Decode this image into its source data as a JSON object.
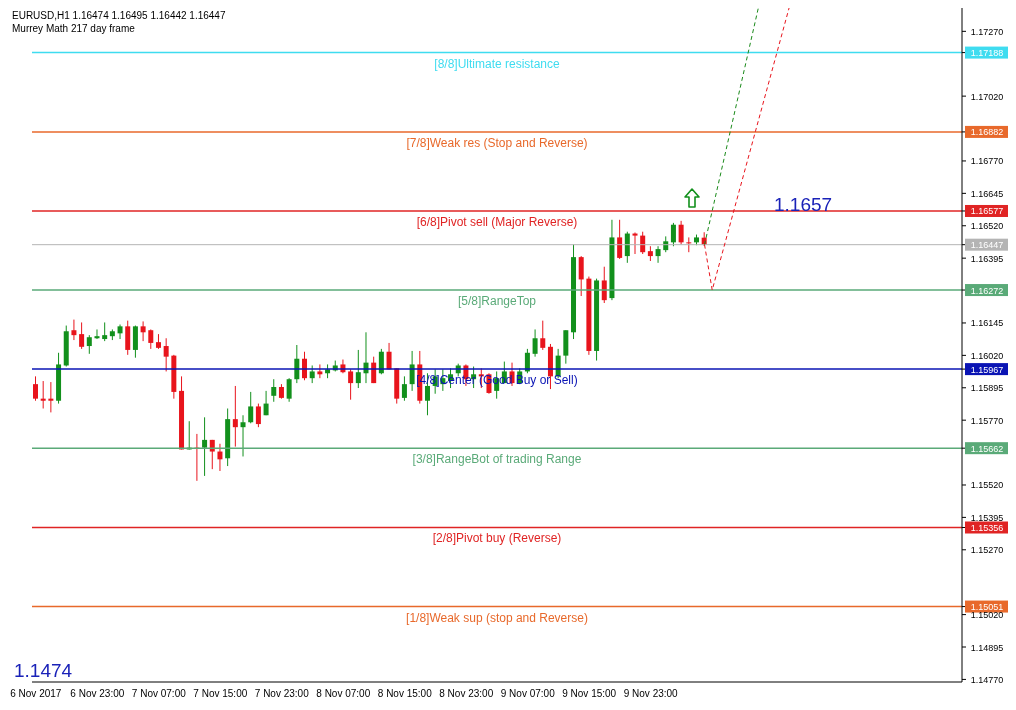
{
  "chart_data": {
    "type": "candlestick",
    "title": "EURUSD,H1 1.16474 1.16495 1.16442 1.16447",
    "subtitle": "Murrey Math 217 day frame",
    "categories": [
      "6 Nov 2017",
      null,
      null,
      null,
      null,
      null,
      null,
      null,
      "6 Nov 23:00",
      null,
      null,
      null,
      null,
      null,
      null,
      null,
      "7 Nov 07:00",
      null,
      null,
      null,
      null,
      null,
      null,
      null,
      "7 Nov 15:00",
      null,
      null,
      null,
      null,
      null,
      null,
      null,
      "7 Nov 23:00",
      null,
      null,
      null,
      null,
      null,
      null,
      null,
      "8 Nov 07:00",
      null,
      null,
      null,
      null,
      null,
      null,
      null,
      "8 Nov 15:00",
      null,
      null,
      null,
      null,
      null,
      null,
      null,
      "8 Nov 23:00",
      null,
      null,
      null,
      null,
      null,
      null,
      null,
      "9 Nov 07:00",
      null,
      null,
      null,
      null,
      null,
      null,
      null,
      "9 Nov 15:00",
      null,
      null,
      null,
      null,
      null,
      null,
      null,
      "9 Nov 23:00",
      null,
      null,
      null,
      null,
      null,
      null,
      null,
      null,
      null,
      null,
      null,
      null,
      null,
      null,
      null,
      null,
      null,
      null,
      null,
      null,
      null,
      null,
      null,
      null,
      null,
      null,
      null,
      null,
      null,
      null,
      null,
      null,
      null,
      null,
      null,
      null,
      null,
      null,
      null,
      null
    ],
    "ohlc": [
      [
        1.15909,
        1.15939,
        1.15845,
        1.15853
      ],
      [
        1.15853,
        1.15921,
        1.15815,
        1.15845
      ],
      [
        1.15853,
        1.15917,
        1.158,
        1.15845
      ],
      [
        1.15845,
        1.1603,
        1.15834,
        1.15985
      ],
      [
        1.15981,
        1.16135,
        1.15977,
        1.16113
      ],
      [
        1.16117,
        1.16158,
        1.16079,
        1.16098
      ],
      [
        1.16102,
        1.16147,
        1.16045,
        1.16053
      ],
      [
        1.16056,
        1.16098,
        1.16026,
        1.1609
      ],
      [
        1.16086,
        1.1612,
        1.16083,
        1.16094
      ],
      [
        1.16083,
        1.16147,
        1.16075,
        1.16098
      ],
      [
        1.16094,
        1.1612,
        1.16079,
        1.16113
      ],
      [
        1.16105,
        1.16139,
        1.16083,
        1.16132
      ],
      [
        1.16132,
        1.16154,
        1.16022,
        1.16041
      ],
      [
        1.16041,
        1.16135,
        1.16011,
        1.16132
      ],
      [
        1.16132,
        1.16151,
        1.16075,
        1.16109
      ],
      [
        1.16117,
        1.1612,
        1.16045,
        1.16068
      ],
      [
        1.16071,
        1.16102,
        1.16045,
        1.16049
      ],
      [
        1.16056,
        1.16086,
        1.15958,
        1.16015
      ],
      [
        1.16019,
        1.16022,
        1.15853,
        1.15879
      ],
      [
        1.15883,
        1.15939,
        1.15657,
        1.15657
      ],
      [
        1.15657,
        1.15766,
        1.15657,
        1.15664
      ],
      [
        1.15664,
        1.15717,
        1.15536,
        1.1566
      ],
      [
        1.15664,
        1.15781,
        1.15555,
        1.15694
      ],
      [
        1.15694,
        1.15694,
        1.15581,
        1.15649
      ],
      [
        1.15649,
        1.15679,
        1.15574,
        1.15619
      ],
      [
        1.15623,
        1.15815,
        1.15593,
        1.15774
      ],
      [
        1.15774,
        1.15902,
        1.15668,
        1.15743
      ],
      [
        1.15743,
        1.15789,
        1.1563,
        1.15762
      ],
      [
        1.15762,
        1.15879,
        1.15758,
        1.15823
      ],
      [
        1.15823,
        1.15834,
        1.15743,
        1.15755
      ],
      [
        1.15789,
        1.15883,
        1.15789,
        1.15834
      ],
      [
        1.15864,
        1.15928,
        1.15841,
        1.15898
      ],
      [
        1.15898,
        1.15909,
        1.15853,
        1.15856
      ],
      [
        1.15853,
        1.15932,
        1.15841,
        1.15928
      ],
      [
        1.15928,
        1.1606,
        1.15913,
        1.16007
      ],
      [
        1.16007,
        1.16034,
        1.15924,
        1.15932
      ],
      [
        1.15932,
        1.15981,
        1.15913,
        1.15958
      ],
      [
        1.15958,
        1.15985,
        1.15932,
        1.15947
      ],
      [
        1.15951,
        1.15985,
        1.15932,
        1.15966
      ],
      [
        1.15962,
        1.16,
        1.15958,
        1.15981
      ],
      [
        1.15985,
        1.16004,
        1.15951,
        1.15955
      ],
      [
        1.15958,
        1.15966,
        1.15849,
        1.15913
      ],
      [
        1.15913,
        1.16041,
        1.15894,
        1.15955
      ],
      [
        1.15951,
        1.16109,
        1.15913,
        1.15992
      ],
      [
        1.15992,
        1.16015,
        1.15913,
        1.15913
      ],
      [
        1.15951,
        1.16045,
        1.15947,
        1.16034
      ],
      [
        1.16034,
        1.16068,
        1.15966,
        1.15966
      ],
      [
        1.1597,
        1.1597,
        1.15834,
        1.15853
      ],
      [
        1.15856,
        1.15939,
        1.15845,
        1.15909
      ],
      [
        1.15909,
        1.16037,
        1.15883,
        1.15985
      ],
      [
        1.15985,
        1.16037,
        1.15834,
        1.15845
      ],
      [
        1.15845,
        1.15951,
        1.15789,
        1.15902
      ],
      [
        1.15902,
        1.15966,
        1.15872,
        1.15939
      ],
      [
        1.15909,
        1.15966,
        1.15883,
        1.15932
      ],
      [
        1.15921,
        1.1597,
        1.15894,
        1.15947
      ],
      [
        1.15951,
        1.15988,
        1.15939,
        1.15981
      ],
      [
        1.15981,
        1.15985,
        1.15902,
        1.15928
      ],
      [
        1.15928,
        1.15977,
        1.15894,
        1.15947
      ],
      [
        1.15947,
        1.1597,
        1.15894,
        1.15939
      ],
      [
        1.15947,
        1.15951,
        1.15872,
        1.15875
      ],
      [
        1.15883,
        1.15958,
        1.15853,
        1.15932
      ],
      [
        1.15913,
        1.15996,
        1.15913,
        1.15958
      ],
      [
        1.15958,
        1.15992,
        1.15902,
        1.15913
      ],
      [
        1.15913,
        1.1597,
        1.15909,
        1.15958
      ],
      [
        1.15958,
        1.16045,
        1.15951,
        1.1603
      ],
      [
        1.16026,
        1.1612,
        1.16015,
        1.16086
      ],
      [
        1.16086,
        1.16154,
        1.16041,
        1.16049
      ],
      [
        1.16053,
        1.16064,
        1.1589,
        1.15939
      ],
      [
        1.15939,
        1.16045,
        1.15932,
        1.16019
      ],
      [
        1.16019,
        1.16117,
        1.15988,
        1.16117
      ],
      [
        1.16109,
        1.16448,
        1.16083,
        1.16399
      ],
      [
        1.16399,
        1.16403,
        1.16249,
        1.16313
      ],
      [
        1.16316,
        1.16324,
        1.16022,
        1.16037
      ],
      [
        1.16037,
        1.16316,
        1.16,
        1.16309
      ],
      [
        1.16309,
        1.16362,
        1.16222,
        1.16233
      ],
      [
        1.16241,
        1.16543,
        1.16233,
        1.16475
      ],
      [
        1.16475,
        1.16543,
        1.16392,
        1.16396
      ],
      [
        1.16403,
        1.16497,
        1.16377,
        1.1649
      ],
      [
        1.1649,
        1.16494,
        1.16411,
        1.16482
      ],
      [
        1.16482,
        1.16497,
        1.16411,
        1.16418
      ],
      [
        1.16422,
        1.16441,
        1.16384,
        1.16403
      ],
      [
        1.16403,
        1.16441,
        1.16377,
        1.1643
      ],
      [
        1.16426,
        1.16479,
        1.16418,
        1.1646
      ],
      [
        1.16456,
        1.16531,
        1.16441,
        1.16524
      ],
      [
        1.16524,
        1.16539,
        1.16448,
        1.16456
      ],
      [
        1.16456,
        1.16475,
        1.16418,
        1.16452
      ],
      [
        1.16456,
        1.16486,
        1.16445,
        1.16475
      ],
      [
        1.16474,
        1.16495,
        1.16442,
        1.16447
      ],
      null,
      null,
      null,
      null,
      null,
      null,
      null,
      null,
      null,
      null,
      null,
      null,
      null,
      null,
      null,
      null,
      null,
      null,
      null,
      null,
      null,
      null,
      null,
      null,
      null,
      null,
      null,
      null,
      null,
      null,
      null,
      null,
      null
    ],
    "series": [
      {
        "type": "line",
        "color": "#1a8a1a",
        "line_style": "dashed",
        "values": [
          null,
          null,
          null,
          null,
          null,
          null,
          null,
          null,
          null,
          null,
          null,
          null,
          null,
          null,
          null,
          null,
          null,
          null,
          null,
          null,
          null,
          null,
          null,
          null,
          null,
          null,
          null,
          null,
          null,
          null,
          null,
          null,
          null,
          null,
          null,
          null,
          null,
          null,
          null,
          null,
          null,
          null,
          null,
          null,
          null,
          null,
          null,
          null,
          null,
          null,
          null,
          null,
          null,
          null,
          null,
          null,
          null,
          null,
          null,
          null,
          null,
          null,
          null,
          null,
          null,
          null,
          null,
          null,
          null,
          null,
          null,
          null,
          null,
          null,
          null,
          null,
          null,
          null,
          null,
          null,
          null,
          null,
          null,
          null,
          null,
          null,
          null,
          1.16447,
          null,
          null,
          null,
          null,
          null,
          null,
          1.1736,
          null,
          null,
          null,
          null,
          null,
          null,
          null,
          null,
          null,
          null,
          null,
          null,
          null,
          null,
          null,
          null,
          null,
          null,
          null,
          null,
          null,
          null,
          null,
          null,
          null,
          null
        ]
      },
      {
        "type": "line",
        "color": "#e8141c",
        "line_style": "dashed",
        "values": [
          null,
          null,
          null,
          null,
          null,
          null,
          null,
          null,
          null,
          null,
          null,
          null,
          null,
          null,
          null,
          null,
          null,
          null,
          null,
          null,
          null,
          null,
          null,
          null,
          null,
          null,
          null,
          null,
          null,
          null,
          null,
          null,
          null,
          null,
          null,
          null,
          null,
          null,
          null,
          null,
          null,
          null,
          null,
          null,
          null,
          null,
          null,
          null,
          null,
          null,
          null,
          null,
          null,
          null,
          null,
          null,
          null,
          null,
          null,
          null,
          null,
          null,
          null,
          null,
          null,
          null,
          null,
          null,
          null,
          null,
          null,
          null,
          null,
          null,
          null,
          null,
          null,
          null,
          null,
          null,
          null,
          null,
          null,
          null,
          null,
          null,
          null,
          1.16447,
          1.16272,
          null,
          null,
          null,
          null,
          null,
          null,
          null,
          null,
          null,
          1.1736,
          null,
          null,
          null,
          null,
          null,
          null,
          null,
          null,
          null,
          null,
          null,
          null,
          null,
          null,
          null,
          null,
          null,
          null,
          null,
          null,
          null,
          null
        ]
      }
    ],
    "ylim": [
      1.1476,
      1.1736
    ],
    "yticks": [
      {
        "value": 1.1727,
        "label": "1.17270"
      },
      {
        "value": 1.17188,
        "label": "1.17188"
      },
      {
        "value": 1.16882,
        "label": "1.16882"
      },
      {
        "value": 1.16577,
        "label": "1.16577"
      },
      {
        "value": 1.16447,
        "label": "1.16447"
      },
      {
        "value": 1.16272,
        "label": "1.16272"
      },
      {
        "value": 1.15967,
        "label": "1.15967"
      },
      {
        "value": 1.15662,
        "label": "1.15662"
      },
      {
        "value": 1.15356,
        "label": "1.15356"
      },
      {
        "value": 1.15051,
        "label": "1.15051"
      },
      {
        "value": 1.1702,
        "label": "1.17020"
      },
      {
        "value": 1.1677,
        "label": "1.16770"
      },
      {
        "value": 1.16645,
        "label": "1.16645"
      },
      {
        "value": 1.1652,
        "label": "1.16520"
      },
      {
        "value": 1.16395,
        "label": "1.16395"
      },
      {
        "value": 1.16145,
        "label": "1.16145"
      },
      {
        "value": 1.1602,
        "label": "1.16020"
      },
      {
        "value": 1.15895,
        "label": "1.15895"
      },
      {
        "value": 1.1577,
        "label": "1.15770"
      },
      {
        "value": 1.1552,
        "label": "1.15520"
      },
      {
        "value": 1.15395,
        "label": "1.15395"
      },
      {
        "value": 1.1527,
        "label": "1.15270"
      },
      {
        "value": 1.1502,
        "label": "1.15020"
      },
      {
        "value": 1.14895,
        "label": "1.14895"
      },
      {
        "value": 1.1477,
        "label": "1.14770"
      }
    ],
    "ref_lines": [
      {
        "axis": "y",
        "value": 1.17188,
        "label": "[8/8]Ultimate resistance",
        "color": "#3fdcf0"
      },
      {
        "axis": "y",
        "value": 1.16882,
        "label": "[7/8]Weak res (Stop and Reverse)",
        "color": "#e8692b"
      },
      {
        "axis": "y",
        "value": 1.16577,
        "label": "[6/8]Pivot sell (Major Reverse)",
        "color": "#e02424"
      },
      {
        "axis": "y",
        "value": 1.16447,
        "color": "#b4b4b4"
      },
      {
        "axis": "y",
        "value": 1.16272,
        "label": "[5/8]RangeTop",
        "color": "#5aaa78"
      },
      {
        "axis": "y",
        "value": 1.15967,
        "label": "[4/8]Center (Good Buy or Sell)",
        "color": "#0a14b4"
      },
      {
        "axis": "y",
        "value": 1.15662,
        "label": "[3/8]RangeBot of trading Range",
        "color": "#5aaa78"
      },
      {
        "axis": "y",
        "value": 1.15356,
        "label": "[2/8]Pivot buy (Reverse)",
        "color": "#e02424"
      },
      {
        "axis": "y",
        "value": 1.15051,
        "label": "[1/8]Weak sup (stop and Reverse)",
        "color": "#e8692b"
      }
    ],
    "annotations": [
      "1.1657",
      "1.1474"
    ]
  }
}
